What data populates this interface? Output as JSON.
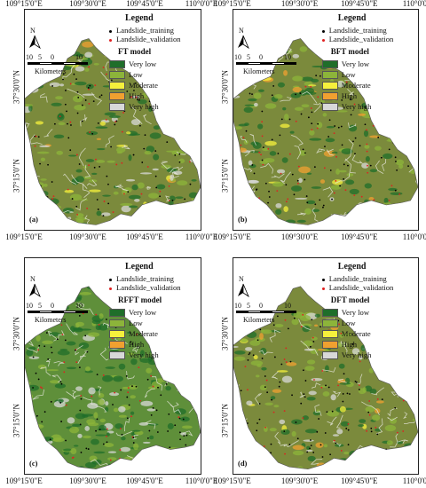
{
  "panels": [
    {
      "id": "(a)",
      "model": "FT model",
      "top_ticks": [
        "109°15'0\"E",
        "109°30'0\"E",
        "109°45'0\"E",
        "110°0'0\"E"
      ],
      "bottom_ticks": [
        "109°15'0\"E",
        "109°30'0\"E",
        "109°45'0\"E",
        "110°0'0\"E"
      ],
      "left_ticks": [
        "37°30'0\"N",
        "37°15'0\"N"
      ]
    },
    {
      "id": "(b)",
      "model": "BFT model",
      "top_ticks": [
        "109°15'0\"E",
        "109°30'0\"E",
        "109°45'0\"E",
        "110°0'0\"E"
      ],
      "bottom_ticks": [
        "109°15'0\"E",
        "109°30'0\"E",
        "109°45'0\"E",
        "110°0'0\"E"
      ],
      "left_ticks": [
        "37°30'0\"N",
        "37°15'0\"N"
      ]
    },
    {
      "id": "(c)",
      "model": "RFFT model",
      "top_ticks": [],
      "bottom_ticks": [
        "109°15'0\"E",
        "109°30'0\"E",
        "109°45'0\"E",
        "110°0'0\"E"
      ],
      "left_ticks": [
        "37°30'0\"N",
        "37°15'0\"N"
      ]
    },
    {
      "id": "(d)",
      "model": "DFT model",
      "top_ticks": [],
      "bottom_ticks": [
        "109°15'0\"E",
        "109°30'0\"E",
        "109°45'0\"E",
        "110°0'0\"E"
      ],
      "left_ticks": [
        "37°30'0\"N",
        "37°15'0\"N"
      ]
    }
  ],
  "legend": {
    "title": "Legend",
    "training": "Landslide_training",
    "validation": "Landslide_validation",
    "training_color": "#000000",
    "validation_color": "#e02020",
    "classes": [
      {
        "label": "Very low",
        "color": "#1f6e2a"
      },
      {
        "label": "Low",
        "color": "#8cb43a"
      },
      {
        "label": "Moderate",
        "color": "#f5f03c"
      },
      {
        "label": "High",
        "color": "#f0a030"
      },
      {
        "label": "Very high",
        "color": "#d8d8d8"
      }
    ]
  },
  "north_label": "N",
  "scale": {
    "ticks": [
      "10",
      "5",
      "0",
      "10"
    ],
    "unit": "Kilometers"
  }
}
